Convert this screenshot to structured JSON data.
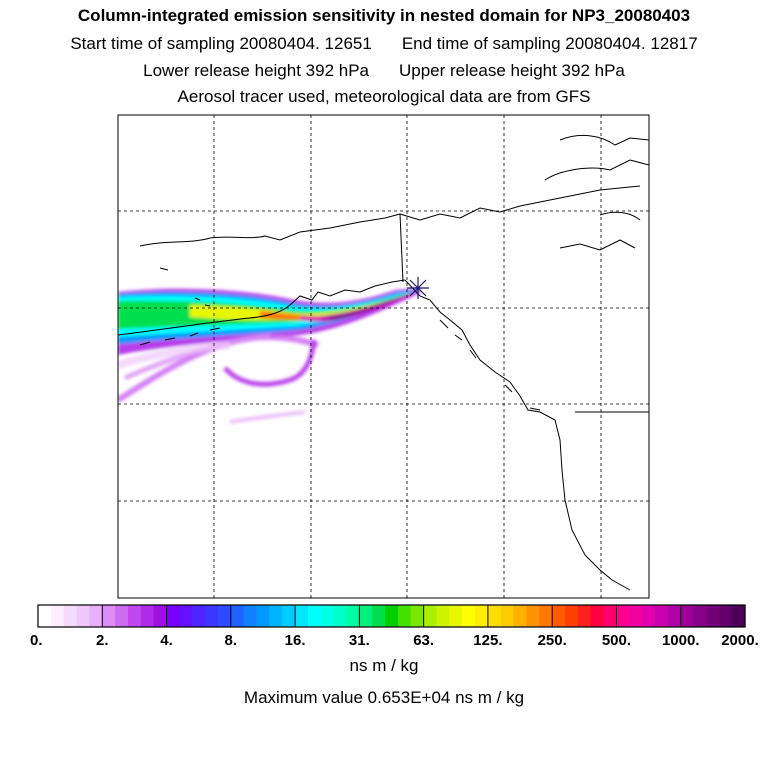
{
  "header": {
    "title": "Column-integrated emission sensitivity in nested domain for NP3_20080403",
    "start_label": "Start time of sampling 20080404. 12651",
    "end_label": "End time of sampling 20080404. 12817",
    "lower_label": "Lower release height  392 hPa",
    "upper_label": "Upper release height  392 hPa",
    "tracer_label": "Aerosol tracer used, meteorological data are from GFS"
  },
  "chart_data": {
    "type": "heatmap",
    "title": "Column-integrated emission sensitivity in nested domain for NP3_20080403",
    "receptor_marker": "release point",
    "colorbar": {
      "units": "ns m / kg",
      "tick_labels": [
        "0.",
        "2.",
        "4.",
        "8.",
        "16.",
        "31.",
        "63.",
        "125.",
        "250.",
        "500.",
        "1000.",
        "2000."
      ],
      "colors": [
        "#ffffff",
        "#fbeefe",
        "#f6dcfc",
        "#efc7fa",
        "#e7b0f8",
        "#d98ff5",
        "#cc6cf2",
        "#bf49ee",
        "#b02aea",
        "#a00fe4",
        "#7700ff",
        "#6311ff",
        "#4f25ff",
        "#3d36ff",
        "#2e4aff",
        "#1e63ff",
        "#0f80ff",
        "#0099ff",
        "#00b3ff",
        "#00ccff",
        "#00e6ff",
        "#00ffff",
        "#00ffe6",
        "#00ffc7",
        "#00ffa0",
        "#00f07a",
        "#00e04f",
        "#00d000",
        "#44e000",
        "#7ae800",
        "#a8f000",
        "#cff400",
        "#e8f600",
        "#ffff00",
        "#ffee00",
        "#ffdd00",
        "#ffcc00",
        "#ffb000",
        "#ff9400",
        "#ff7800",
        "#ff5c00",
        "#ff4000",
        "#ff2020",
        "#ff0040",
        "#ff0070",
        "#ff0090",
        "#f000a0",
        "#e000b0",
        "#c800b0",
        "#b000a8",
        "#9c0098",
        "#880088",
        "#740078",
        "#600068",
        "#4c0058"
      ]
    },
    "max_value": "0.653E+04",
    "max_label": "Maximum value  0.653E+04 ns m / kg"
  }
}
